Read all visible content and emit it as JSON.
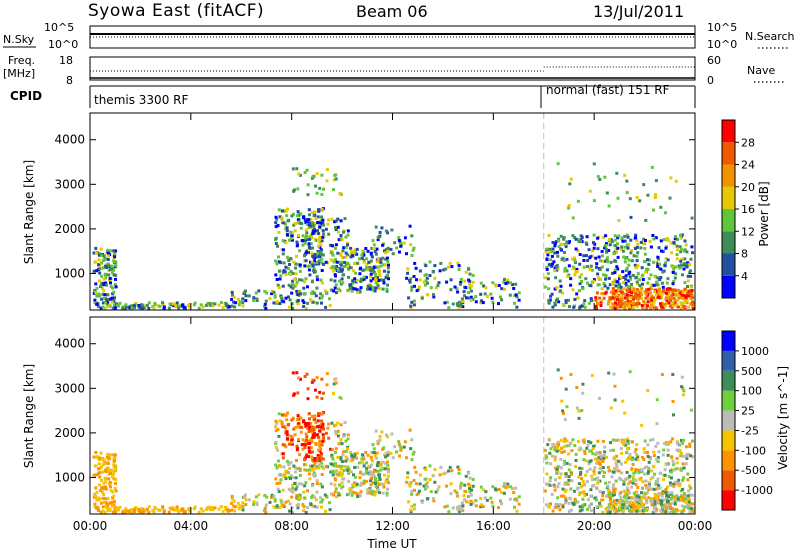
{
  "header": {
    "station": "Syowa East (fitACF)",
    "beam": "Beam 06",
    "date": "13/Jul/2011"
  },
  "panels": {
    "noise": {
      "left_label": "N.Sky",
      "right_label": "N.Search",
      "left_ticks": [
        "10^5",
        "10^0"
      ],
      "right_ticks": [
        "10^5",
        "10^0"
      ]
    },
    "freq": {
      "left_label": "Freq.",
      "left_unit": "[MHz]",
      "right_label": "Nave",
      "left_ticks": [
        "18",
        "8"
      ],
      "right_ticks": [
        "60",
        "0"
      ]
    },
    "cpid": {
      "label": "CPID",
      "modes": [
        "themis 3300 RF",
        "normal (fast) 151 RF"
      ]
    }
  },
  "legend_styles": {
    "n_search": "dotted",
    "nave": "dotted"
  },
  "colors": {
    "power": [
      "#0000ff",
      "#224fa0",
      "#3d8c5a",
      "#5fc63c",
      "#e8c800",
      "#f39200",
      "#f05a00",
      "#ff0000"
    ],
    "velocity": [
      "#ff0000",
      "#f05a00",
      "#ff9200",
      "#f5c400",
      "#bbbbbb",
      "#6ed13c",
      "#3d8c5a",
      "#2f60a8",
      "#0000ff"
    ]
  },
  "chart_data": [
    {
      "type": "heatmap",
      "name": "power",
      "ylabel": "Slant Range [km]",
      "yticks": [
        1000,
        2000,
        3000,
        4000
      ],
      "ylim": [
        180,
        4600
      ],
      "xlim": [
        0,
        24
      ],
      "colorbar": {
        "label": "Power [dB]",
        "ticks": [
          "4",
          "8",
          "12",
          "16",
          "20",
          "24",
          "28"
        ],
        "range": [
          0,
          32
        ]
      }
    },
    {
      "type": "heatmap",
      "name": "velocity",
      "ylabel": "Slant Range [km]",
      "yticks": [
        1000,
        2000,
        3000,
        4000
      ],
      "ylim": [
        180,
        4600
      ],
      "xlim": [
        0,
        24
      ],
      "xlabel": "Time UT",
      "xticks": [
        "00:00",
        "04:00",
        "08:00",
        "12:00",
        "16:00",
        "20:00",
        "00:00"
      ],
      "colorbar": {
        "label": "Velocity [m s^-1]",
        "ticks": [
          "1000",
          "500",
          "100",
          "25",
          "-25",
          "-100",
          "-500",
          "-1000"
        ]
      }
    }
  ],
  "mode_change_time_ut": 18.0
}
